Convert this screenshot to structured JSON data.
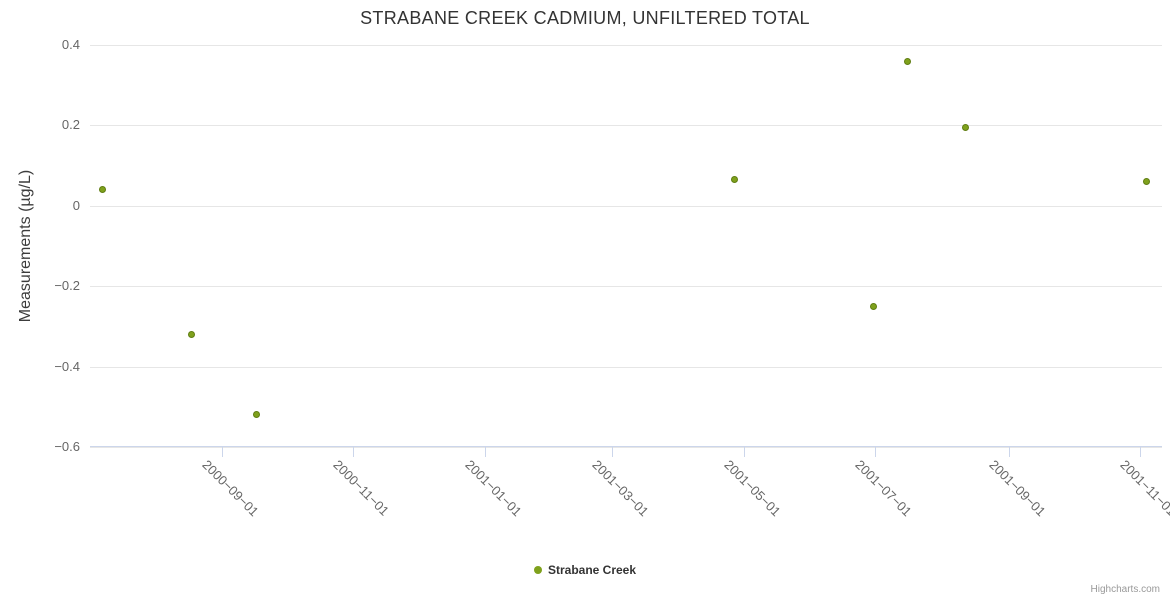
{
  "page": {
    "credits": "Highcharts.com"
  },
  "legend": {
    "items": [
      {
        "label": "Strabane Creek",
        "color": "#7fa11c"
      }
    ]
  },
  "chart_data": {
    "type": "scatter",
    "title": "STRABANE CREEK CADMIUM, UNFILTERED TOTAL",
    "xlabel": "",
    "ylabel": "Measurements (µg/L)",
    "ylim": [
      -0.6,
      0.4
    ],
    "yticks": [
      0.4,
      0.2,
      0,
      -0.2,
      -0.4,
      -0.6
    ],
    "ytick_labels": [
      "0.4",
      "0.2",
      "0",
      "−0.2",
      "−0.4",
      "−0.6"
    ],
    "xlim": [
      "2000-07-02",
      "2001-11-11"
    ],
    "xticks": [
      "2000-09-01",
      "2000-11-01",
      "2001-01-01",
      "2001-03-01",
      "2001-05-01",
      "2001-07-01",
      "2001-09-01",
      "2001-11-01"
    ],
    "xtick_labels": [
      "2000−09−01",
      "2000−11−01",
      "2001−01−01",
      "2001−03−01",
      "2001−05−01",
      "2001−07−01",
      "2001−09−01",
      "2001−11−01"
    ],
    "grid": true,
    "legend_position": "bottom",
    "series": [
      {
        "name": "Strabane Creek",
        "color": "#7fa11c",
        "points": [
          {
            "date": "2000-07-08",
            "value": 0.04
          },
          {
            "date": "2000-08-18",
            "value": -0.32
          },
          {
            "date": "2000-09-17",
            "value": -0.52
          },
          {
            "date": "2001-04-27",
            "value": 0.065
          },
          {
            "date": "2001-06-30",
            "value": -0.25
          },
          {
            "date": "2001-07-16",
            "value": 0.36
          },
          {
            "date": "2001-08-12",
            "value": 0.195
          },
          {
            "date": "2001-11-04",
            "value": 0.06
          }
        ]
      }
    ]
  }
}
